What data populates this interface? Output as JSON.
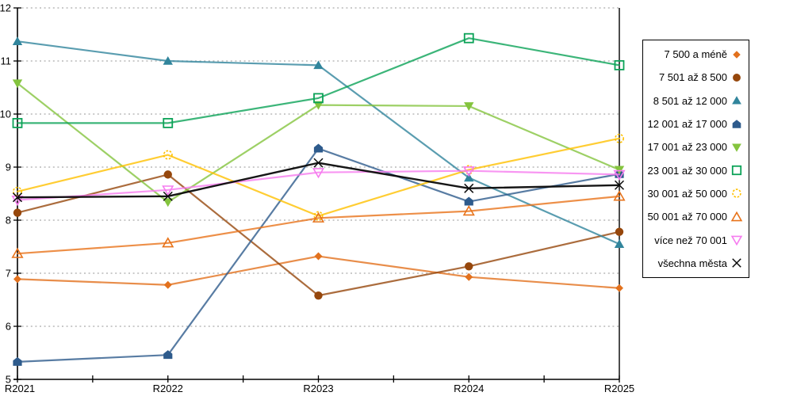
{
  "chart_data": {
    "type": "line",
    "title": "",
    "xlabel": "",
    "ylabel": "",
    "x_categories": [
      "R2021",
      "R2022",
      "R2023",
      "R2024",
      "R2025"
    ],
    "ylim": [
      5,
      12
    ],
    "yticks": [
      5,
      6,
      7,
      8,
      9,
      10,
      11,
      12
    ],
    "grid": "horizontal dotted",
    "legend_position": "right",
    "colors": {
      "grid": "#ABABAB",
      "axis": "#000000"
    },
    "series": [
      {
        "name": "7 500 a méně",
        "color": "#E2711D",
        "marker": "diamond-filled",
        "values": [
          6.89,
          6.78,
          7.32,
          6.93,
          6.72
        ]
      },
      {
        "name": "7 501 až 8 500",
        "color": "#96470C",
        "marker": "circle-filled",
        "values": [
          8.14,
          8.86,
          6.58,
          7.13,
          7.78
        ]
      },
      {
        "name": "8 501 až 12 000",
        "color": "#31859C",
        "marker": "triangle-up-filled",
        "values": [
          11.37,
          11.0,
          10.92,
          8.8,
          7.55
        ]
      },
      {
        "name": "12 001 až 17 000",
        "color": "#2E5B8C",
        "marker": "pentagon-filled",
        "values": [
          5.33,
          5.46,
          9.35,
          8.35,
          8.87
        ]
      },
      {
        "name": "17 001 až 23 000",
        "color": "#84C43E",
        "marker": "triangle-down-filled",
        "values": [
          10.58,
          8.34,
          10.17,
          10.15,
          8.95
        ]
      },
      {
        "name": "23 001 až 30 000",
        "color": "#0BA257",
        "marker": "square-open",
        "values": [
          9.83,
          9.83,
          10.3,
          11.43,
          10.92
        ]
      },
      {
        "name": "30 001 až 50 000",
        "color": "#FFC000",
        "marker": "circle-open",
        "values": [
          8.54,
          9.23,
          8.08,
          8.95,
          9.54
        ]
      },
      {
        "name": "50 001 až 70 000",
        "color": "#E8731A",
        "marker": "triangle-up-open",
        "values": [
          7.37,
          7.57,
          8.04,
          8.17,
          8.45
        ]
      },
      {
        "name": "více než 70 001",
        "color": "#F67CEF",
        "marker": "triangle-down-open",
        "values": [
          8.38,
          8.57,
          8.9,
          8.93,
          8.86
        ]
      },
      {
        "name": "všechna města",
        "color": "#0A0A0A",
        "marker": "x",
        "values": [
          8.43,
          8.45,
          9.08,
          8.6,
          8.66
        ]
      }
    ]
  }
}
